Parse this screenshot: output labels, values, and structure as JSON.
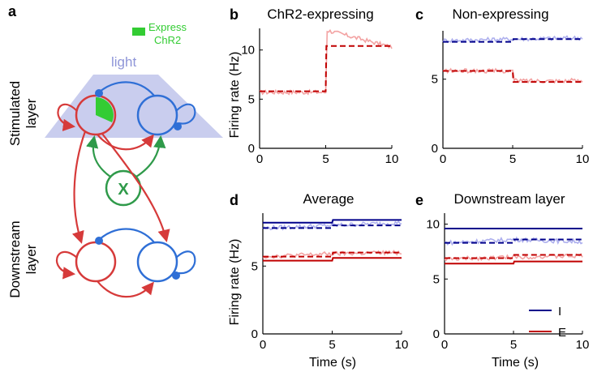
{
  "panel_a": {
    "label": "a",
    "express_label_1": "Express",
    "express_label_2": "ChR2",
    "light_label": "light",
    "stimulated_label_1": "Stimulated",
    "stimulated_label_2": "layer",
    "downstream_label_1": "Downstream",
    "downstream_label_2": "layer",
    "x_node_label": "X",
    "colors": {
      "excitatory": "#d63a3a",
      "inhibitory": "#2f6fd6",
      "external": "#2f9a4a",
      "chr2": "#33cc33",
      "light": "#c9cdee"
    }
  },
  "chart_data": [
    {
      "id": "b",
      "panel_label": "b",
      "type": "line",
      "title": "ChR2-expressing",
      "xlabel": "",
      "ylabel": "Firing rate (Hz)",
      "xlim": [
        0,
        10
      ],
      "ylim": [
        0,
        12.2
      ],
      "xticks": [
        0,
        5,
        10
      ],
      "yticks": [
        0,
        5,
        10
      ],
      "series": [
        {
          "color": "#f3a3a3",
          "style": "noisy",
          "x": [
            0,
            5,
            5.1,
            10
          ],
          "y": [
            5.7,
            5.7,
            12,
            10.3
          ]
        },
        {
          "color": "#c00000",
          "style": "dashed",
          "x": [
            0,
            5,
            5.05,
            10
          ],
          "y": [
            5.8,
            5.8,
            10.4,
            10.4
          ]
        }
      ]
    },
    {
      "id": "c",
      "panel_label": "c",
      "type": "line",
      "title": "Non-expressing",
      "xlabel": "",
      "ylabel": "",
      "xlim": [
        0,
        10
      ],
      "ylim": [
        0,
        8.5
      ],
      "xticks": [
        0,
        5,
        10
      ],
      "yticks": [
        0,
        5
      ],
      "series": [
        {
          "color": "#aeb0ee",
          "style": "noisy",
          "x": [
            0,
            5,
            10
          ],
          "y": [
            7.8,
            7.9,
            8.0
          ]
        },
        {
          "color": "#00008b",
          "style": "dashed",
          "x": [
            0,
            5,
            5.05,
            10
          ],
          "y": [
            7.7,
            7.7,
            7.9,
            7.9
          ]
        },
        {
          "color": "#f3a3a3",
          "style": "noisy",
          "x": [
            0,
            5,
            5.05,
            10
          ],
          "y": [
            5.6,
            5.6,
            4.9,
            4.9
          ]
        },
        {
          "color": "#c00000",
          "style": "dashed",
          "x": [
            0,
            5,
            5.05,
            10
          ],
          "y": [
            5.6,
            5.6,
            4.8,
            4.8
          ]
        }
      ]
    },
    {
      "id": "d",
      "panel_label": "d",
      "type": "line",
      "title": "Average",
      "xlabel": "Time (s)",
      "ylabel": "Firing rate (Hz)",
      "xlim": [
        0,
        10
      ],
      "ylim": [
        0,
        8.9
      ],
      "xticks": [
        0,
        5,
        10
      ],
      "yticks": [
        0,
        5
      ],
      "series": [
        {
          "color": "#aeb0ee",
          "style": "noisy",
          "x": [
            0,
            5,
            10
          ],
          "y": [
            7.8,
            8.0,
            8.2
          ]
        },
        {
          "color": "#00008b",
          "style": "dashed",
          "x": [
            0,
            5,
            5.05,
            10
          ],
          "y": [
            7.8,
            7.8,
            8.0,
            8.0
          ]
        },
        {
          "color": "#00008b",
          "style": "solid",
          "x": [
            0,
            5,
            5.05,
            10
          ],
          "y": [
            8.2,
            8.2,
            8.4,
            8.4
          ]
        },
        {
          "color": "#f3a3a3",
          "style": "noisy",
          "x": [
            0,
            5,
            10
          ],
          "y": [
            5.7,
            5.9,
            6.0
          ]
        },
        {
          "color": "#c00000",
          "style": "dashed",
          "x": [
            0,
            5,
            5.05,
            10
          ],
          "y": [
            5.7,
            5.7,
            6.0,
            6.0
          ]
        },
        {
          "color": "#c00000",
          "style": "solid",
          "x": [
            0,
            5,
            5.05,
            10
          ],
          "y": [
            5.4,
            5.4,
            5.6,
            5.6
          ]
        }
      ]
    },
    {
      "id": "e",
      "panel_label": "e",
      "type": "line",
      "title": "Downstream layer",
      "xlabel": "Time (s)",
      "ylabel": "",
      "xlim": [
        0,
        10
      ],
      "ylim": [
        0,
        11
      ],
      "xticks": [
        0,
        5,
        10
      ],
      "yticks": [
        0,
        5,
        10
      ],
      "legend": {
        "position": "bottom-right",
        "entries": [
          {
            "label": "I",
            "color": "#00008b"
          },
          {
            "label": "E",
            "color": "#c00000"
          }
        ]
      },
      "series": [
        {
          "color": "#aeb0ee",
          "style": "noisy",
          "x": [
            0,
            5,
            10
          ],
          "y": [
            8.3,
            8.6,
            8.4
          ]
        },
        {
          "color": "#00008b",
          "style": "dashed",
          "x": [
            0,
            5,
            5.05,
            10
          ],
          "y": [
            8.3,
            8.3,
            8.6,
            8.6
          ]
        },
        {
          "color": "#00008b",
          "style": "solid",
          "x": [
            0,
            10
          ],
          "y": [
            9.6,
            9.6
          ]
        },
        {
          "color": "#f3a3a3",
          "style": "noisy",
          "x": [
            0,
            5,
            10
          ],
          "y": [
            6.8,
            7.0,
            7.1
          ]
        },
        {
          "color": "#c00000",
          "style": "dashed",
          "x": [
            0,
            5,
            5.05,
            10
          ],
          "y": [
            6.9,
            6.9,
            7.2,
            7.2
          ]
        },
        {
          "color": "#c00000",
          "style": "solid",
          "x": [
            0,
            5,
            5.05,
            10
          ],
          "y": [
            6.4,
            6.4,
            6.6,
            6.6
          ]
        }
      ]
    }
  ]
}
